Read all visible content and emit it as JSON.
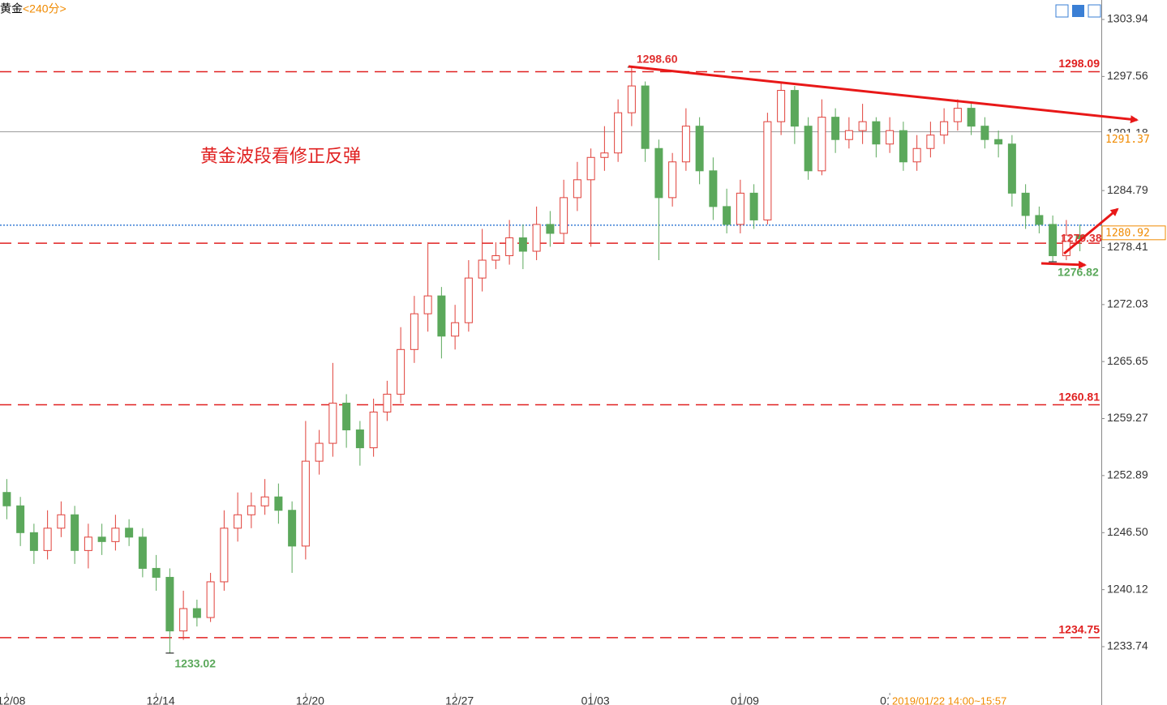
{
  "chart_data": {
    "type": "candlestick",
    "title": "黄金",
    "subtitle": "<240分>",
    "annotation": "黄金波段看修正反弹",
    "cursor_label": "2019/01/22 14:00~15:57",
    "up_color": "#e0403a",
    "down_color": "#5ba85b",
    "ylim": [
      1228.57,
      1306.12
    ],
    "yticks": [
      1303.94,
      1297.56,
      1291.18,
      1284.79,
      1278.41,
      1272.03,
      1265.65,
      1259.27,
      1252.89,
      {
        "value": 1246.5,
        "label": "1246.50"
      },
      1240.12,
      1233.74
    ],
    "categories": [
      "12/08",
      null,
      null,
      null,
      null,
      null,
      null,
      null,
      null,
      null,
      null,
      "12/14",
      null,
      null,
      null,
      null,
      null,
      null,
      null,
      null,
      null,
      null,
      "12/20",
      null,
      null,
      null,
      null,
      null,
      null,
      null,
      null,
      null,
      null,
      "12/27",
      null,
      null,
      null,
      null,
      null,
      null,
      null,
      null,
      null,
      "01/03",
      null,
      null,
      null,
      null,
      null,
      null,
      null,
      null,
      null,
      null,
      "01/09",
      null,
      null,
      null,
      null,
      null,
      null,
      null,
      null,
      null,
      null,
      "01/",
      null,
      null,
      null,
      null,
      null,
      null,
      null,
      null,
      null,
      null,
      null,
      null,
      null,
      null
    ],
    "open": [
      1251,
      1249.5,
      1246.5,
      1244.5,
      1247,
      1248.5,
      1244.5,
      1246,
      1245.5,
      1247,
      1246,
      1242.5,
      1241.5,
      1235.5,
      1238,
      1237,
      1241,
      1247,
      1248.5,
      1249.5,
      1250.5,
      1249,
      1245,
      1254.5,
      1256.5,
      1261,
      1258,
      1256,
      1260,
      1262,
      1267,
      1271,
      1273,
      1268.5,
      1270,
      1275,
      1277,
      1277.5,
      1279.5,
      1278,
      1281,
      1280,
      1284,
      1286,
      1288.5,
      1289,
      1293.5,
      1296.5,
      1289.5,
      1284,
      1288,
      1292,
      1287,
      1283,
      1281,
      1284.5,
      1281.5,
      1292.5,
      1296,
      1292,
      1287,
      1293,
      1290.5,
      1291.5,
      1292.5,
      1290,
      1291.5,
      1288,
      1289.5,
      1291,
      1292.5,
      1294,
      1292,
      1290.5,
      1290,
      1284.5,
      1282,
      1281,
      1277.5,
      1279.8
    ],
    "high": [
      1252.5,
      1250.5,
      1247.5,
      1249,
      1250,
      1249.5,
      1247.5,
      1247.5,
      1248.5,
      1248,
      1247,
      1244,
      1242.5,
      1240,
      1239,
      1242,
      1249,
      1251,
      1251,
      1252.5,
      1252,
      1250,
      1259,
      1258,
      1265.5,
      1262,
      1259,
      1261.5,
      1263.5,
      1269.5,
      1273,
      1279,
      1274,
      1272,
      1277,
      1280.5,
      1279,
      1281.5,
      1281,
      1283,
      1282.5,
      1286,
      1288,
      1289.5,
      1292,
      1295,
      1298.6,
      1297,
      1290.5,
      1289,
      1294,
      1293,
      1288.5,
      1285,
      1286,
      1285.5,
      1293.5,
      1297,
      1296.5,
      1293,
      1295,
      1294,
      1293,
      1294.5,
      1293,
      1293,
      1292.5,
      1291,
      1292.5,
      1294,
      1295,
      1294.5,
      1293,
      1291.5,
      1291,
      1285.5,
      1283,
      1282,
      1281.5,
      1281
    ],
    "low": [
      1248,
      1245,
      1243,
      1243.5,
      1246,
      1243,
      1242.5,
      1244,
      1244.5,
      1245,
      1241.5,
      1240,
      1233.02,
      1234.5,
      1236,
      1236.5,
      1240,
      1245.5,
      1247,
      1248.5,
      1247.5,
      1242,
      1243.5,
      1253,
      1255,
      1256,
      1254,
      1255,
      1259,
      1261,
      1265.5,
      1269,
      1266,
      1267,
      1269,
      1273.5,
      1276,
      1276.5,
      1276,
      1277,
      1278.5,
      1279,
      1282.5,
      1278.5,
      1287,
      1288,
      1292,
      1288,
      1277,
      1283,
      1287,
      1285.5,
      1281.5,
      1280,
      1280,
      1280.5,
      1281,
      1291,
      1290,
      1286,
      1286.5,
      1289,
      1289.5,
      1290,
      1288.5,
      1289,
      1287,
      1287,
      1288.5,
      1290,
      1291.5,
      1291,
      1289.5,
      1288.5,
      1283,
      1280.5,
      1280,
      1276.82,
      1277,
      1278
    ],
    "close": [
      1249.5,
      1246.5,
      1244.5,
      1247,
      1248.5,
      1244.5,
      1246,
      1245.5,
      1247,
      1246,
      1242.5,
      1241.5,
      1235.5,
      1238,
      1237,
      1241,
      1247,
      1248.5,
      1249.5,
      1250.5,
      1249,
      1245,
      1254.5,
      1256.5,
      1261,
      1258,
      1256,
      1260,
      1262,
      1267,
      1271,
      1273,
      1268.5,
      1270,
      1275,
      1277,
      1277.5,
      1279.5,
      1278,
      1281,
      1280,
      1284,
      1286,
      1288.5,
      1289,
      1293.5,
      1296.5,
      1289.5,
      1284,
      1288,
      1292,
      1287,
      1283,
      1281,
      1284.5,
      1281.5,
      1292.5,
      1296,
      1292,
      1287,
      1293,
      1290.5,
      1291.5,
      1292.5,
      1290,
      1291.5,
      1288,
      1289.5,
      1291,
      1292.5,
      1294,
      1292,
      1290.5,
      1290,
      1284.5,
      1282,
      1281,
      1277.5,
      1279.8,
      1279.4
    ],
    "levels": [
      {
        "value": 1298.09,
        "label": "1298.09",
        "color": "#e02020",
        "style": "dashed"
      },
      {
        "value": 1278.9,
        "color": "#e02020",
        "style": "dashed"
      },
      {
        "value": 1260.81,
        "label": "1260.81",
        "color": "#e02020",
        "style": "dashed"
      },
      {
        "value": 1234.75,
        "label": "1234.75",
        "color": "#e02020",
        "style": "dashed"
      },
      {
        "value": 1291.37,
        "label": "1291.37",
        "color": "#9a9a9a",
        "label_color": "#f08a00",
        "style": "solid"
      },
      {
        "value": 1280.92,
        "label": "1280.92",
        "color": "#3a7fd5",
        "label_color": "#f08a00",
        "style": "dotted"
      }
    ],
    "point_labels": [
      {
        "value": 1298.6,
        "label": "1298.60",
        "color": "#e03030"
      },
      {
        "value": 1233.02,
        "label": "1233.02",
        "color": "#5ba85b"
      },
      {
        "value": 1276.82,
        "label": "1276.82",
        "color": "#5ba85b"
      },
      {
        "value": 1279.38,
        "label": "1279.38",
        "color": "#e03030"
      }
    ]
  }
}
